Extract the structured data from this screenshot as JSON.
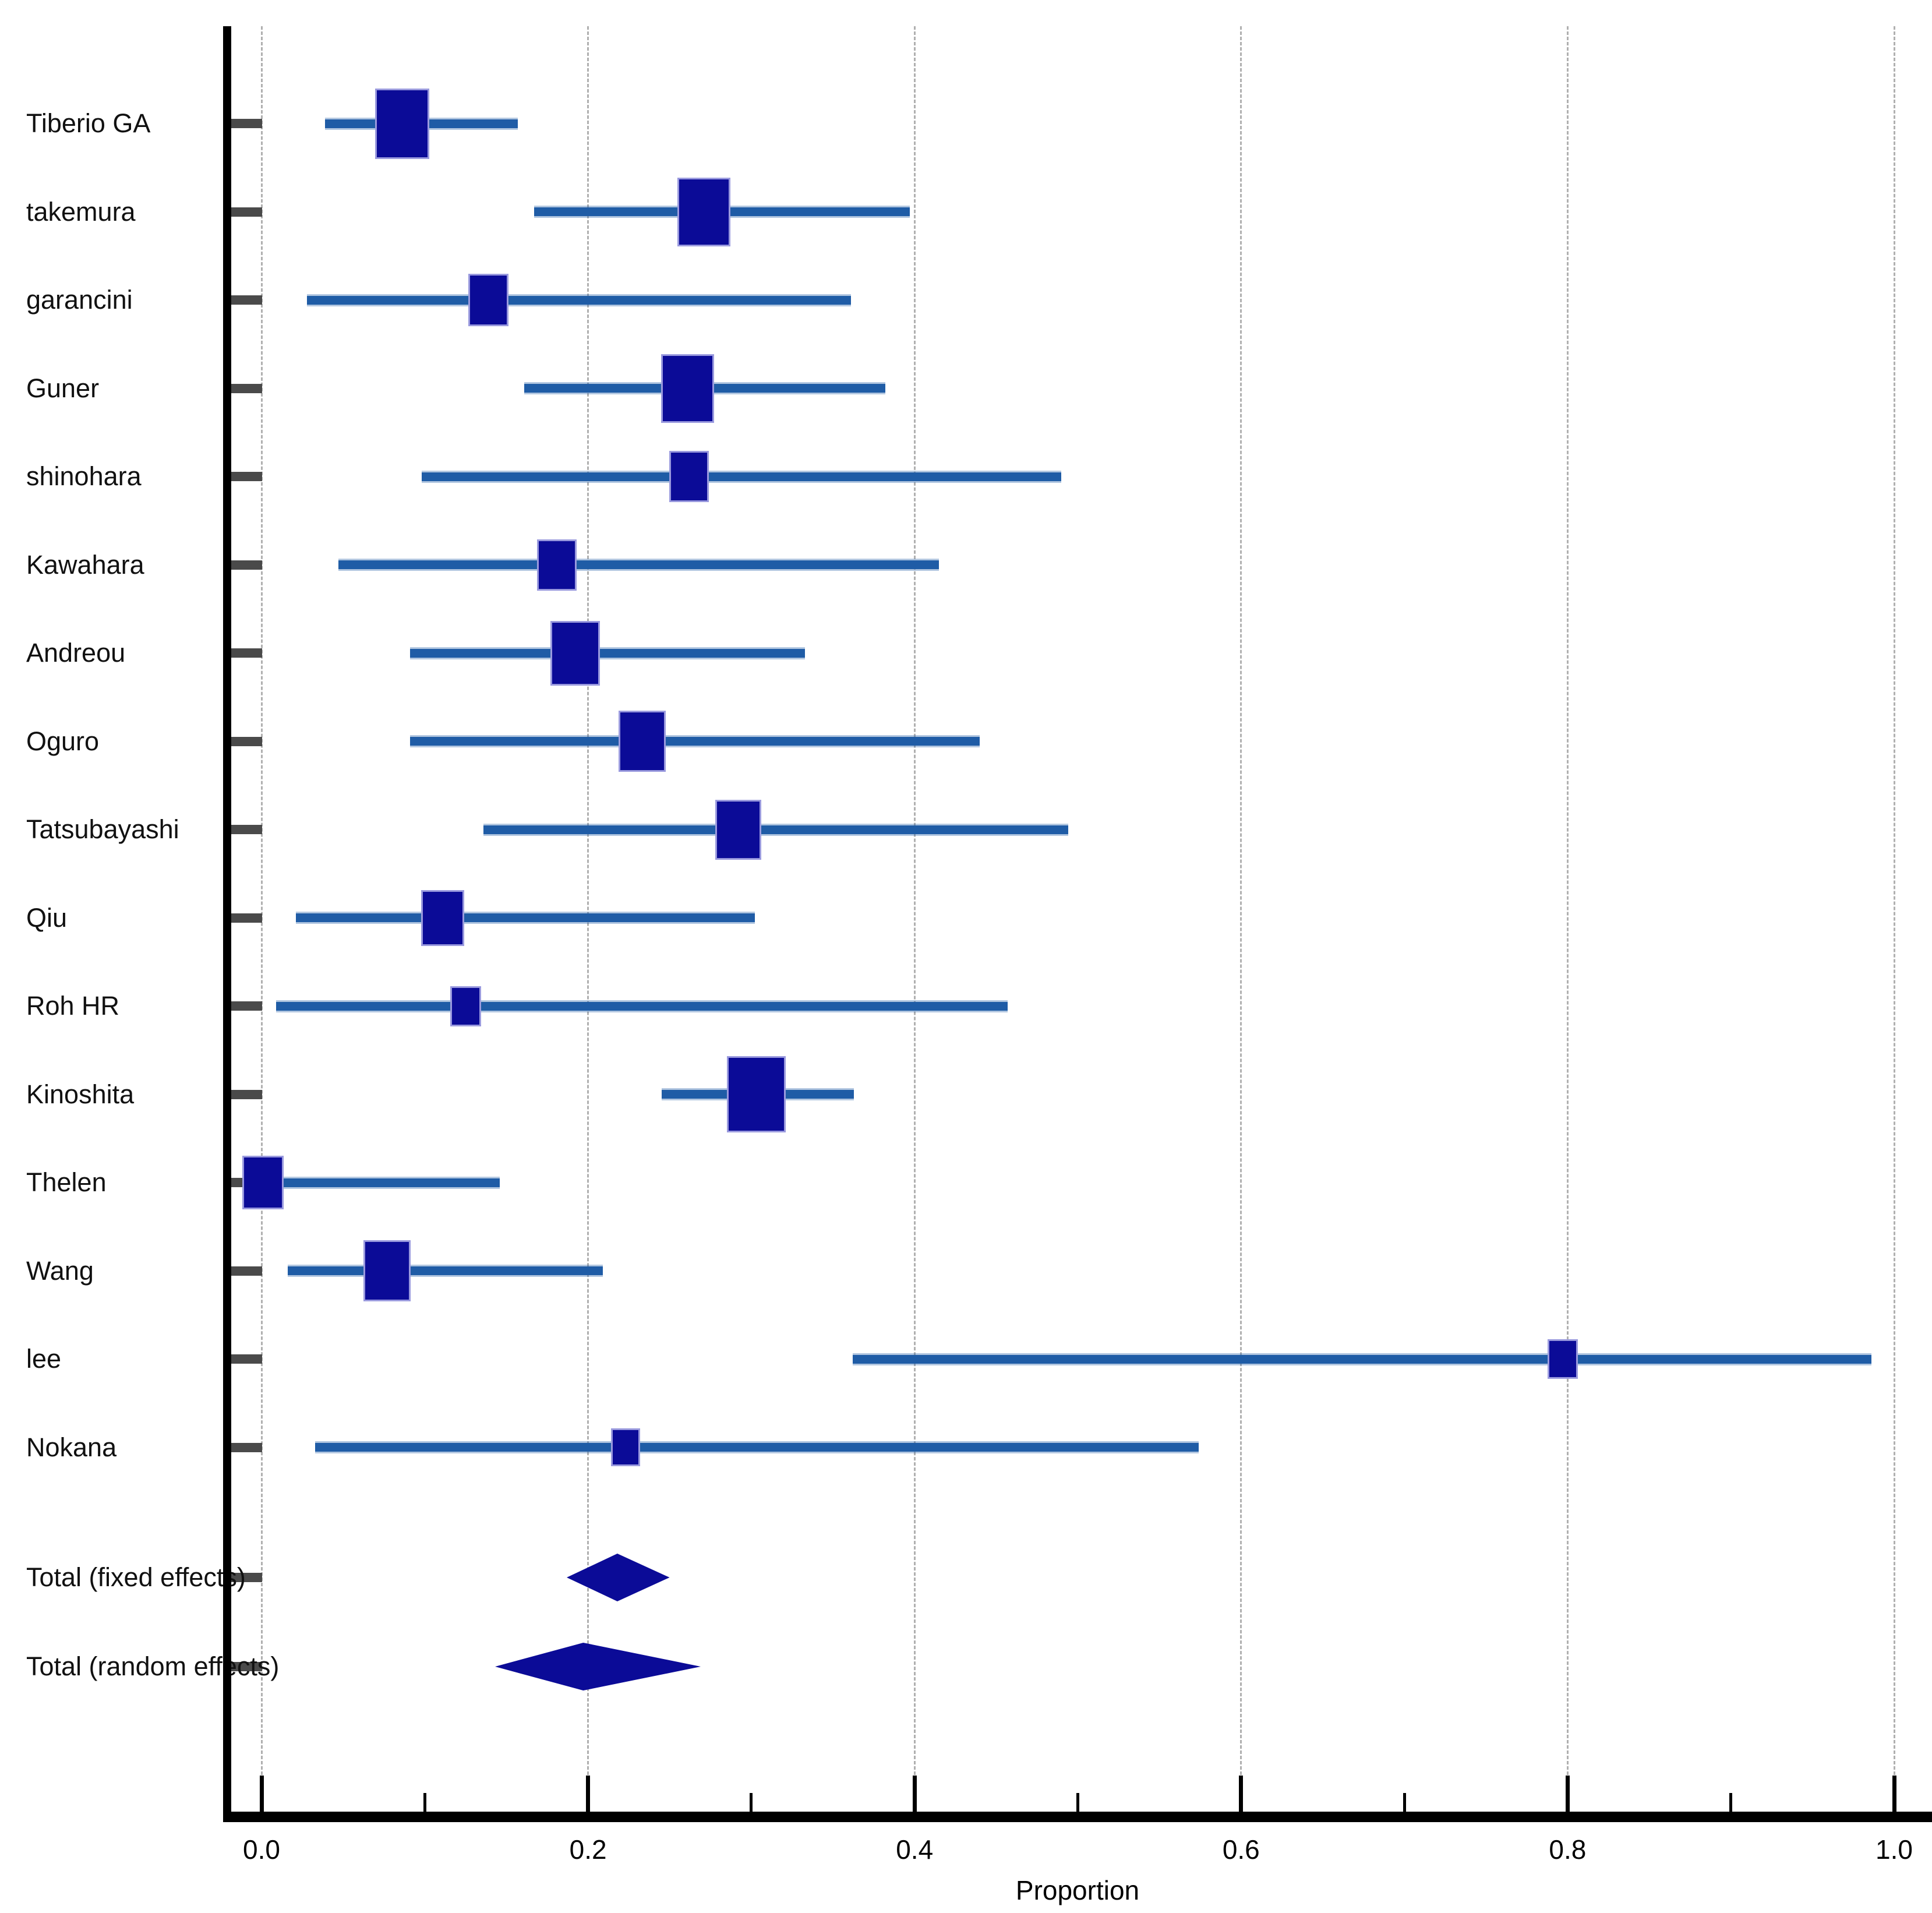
{
  "chart_data": {
    "type": "forest",
    "title": "",
    "xlabel": "Proportion",
    "xlim": [
      0.0,
      1.0
    ],
    "grid": "vertical dashed gridlines at major x ticks",
    "legend": "none",
    "x_major_ticks": [
      0.0,
      0.2,
      0.4,
      0.6,
      0.8,
      1.0
    ],
    "x_major_tick_labels": [
      "0.0",
      "0.2",
      "0.4",
      "0.6",
      "0.8",
      "1.0"
    ],
    "x_minor_ticks": [
      0.1,
      0.3,
      0.5,
      0.7,
      0.9
    ],
    "studies": [
      {
        "label": "Tiberio GA",
        "proportion": 0.086,
        "ci_low": 0.039,
        "ci_high": 0.157,
        "marker_size": 93
      },
      {
        "label": "takemura",
        "proportion": 0.271,
        "ci_low": 0.167,
        "ci_high": 0.397,
        "marker_size": 91
      },
      {
        "label": "garancini",
        "proportion": 0.139,
        "ci_low": 0.028,
        "ci_high": 0.361,
        "marker_size": 69
      },
      {
        "label": "Guner",
        "proportion": 0.261,
        "ci_low": 0.161,
        "ci_high": 0.382,
        "marker_size": 91
      },
      {
        "label": "shinohara",
        "proportion": 0.262,
        "ci_low": 0.098,
        "ci_high": 0.49,
        "marker_size": 68
      },
      {
        "label": "Kawahara",
        "proportion": 0.181,
        "ci_low": 0.047,
        "ci_high": 0.415,
        "marker_size": 68
      },
      {
        "label": "Andreou",
        "proportion": 0.192,
        "ci_low": 0.091,
        "ci_high": 0.333,
        "marker_size": 85
      },
      {
        "label": "Oguro",
        "proportion": 0.233,
        "ci_low": 0.091,
        "ci_high": 0.44,
        "marker_size": 81
      },
      {
        "label": "Tatsubayashi",
        "proportion": 0.292,
        "ci_low": 0.136,
        "ci_high": 0.494,
        "marker_size": 79
      },
      {
        "label": "Qiu",
        "proportion": 0.111,
        "ci_low": 0.021,
        "ci_high": 0.302,
        "marker_size": 74
      },
      {
        "label": "Roh HR",
        "proportion": 0.125,
        "ci_low": 0.009,
        "ci_high": 0.457,
        "marker_size": 53
      },
      {
        "label": "Kinoshita",
        "proportion": 0.303,
        "ci_low": 0.245,
        "ci_high": 0.363,
        "marker_size": 101
      },
      {
        "label": "Thelen",
        "proportion": 0.001,
        "ci_low": 0.0,
        "ci_high": 0.146,
        "marker_size": 71
      },
      {
        "label": "Wang",
        "proportion": 0.077,
        "ci_low": 0.016,
        "ci_high": 0.209,
        "marker_size": 81
      },
      {
        "label": "lee",
        "proportion": 0.797,
        "ci_low": 0.362,
        "ci_high": 0.986,
        "marker_size": 52
      },
      {
        "label": "Nokana",
        "proportion": 0.223,
        "ci_low": 0.033,
        "ci_high": 0.574,
        "marker_size": 50
      }
    ],
    "totals": [
      {
        "label": "Total (fixed effects)",
        "proportion": 0.218,
        "ci_low": 0.187,
        "ci_high": 0.25
      },
      {
        "label": "Total (random effects)",
        "proportion": 0.197,
        "ci_low": 0.143,
        "ci_high": 0.269
      }
    ]
  },
  "colors": {
    "marker_fill": "#0b0b97",
    "marker_edge": "#9a9ade",
    "diamond_fill": "#0b0b97",
    "ci_line": "#1f5ca6",
    "axis": "#000000",
    "y_tick": "#4a4a4a",
    "gridline": "#b0b0b0",
    "text": "#000000"
  }
}
